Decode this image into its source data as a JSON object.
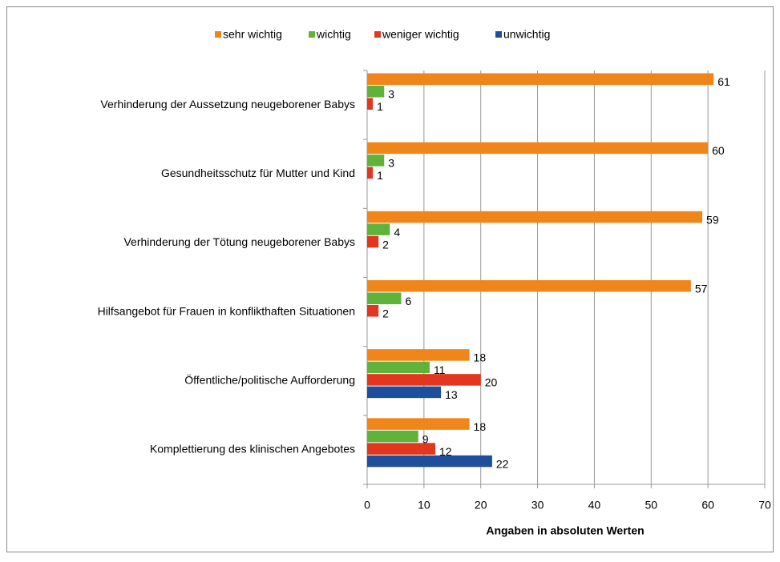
{
  "chart_data": {
    "type": "barh",
    "categories": [
      "Verhinderung der Aussetzung neugeborener Babys",
      "Gesundheitsschutz für Mutter und Kind",
      "Verhinderung der Tötung neugeborener Babys",
      "Hilfsangebot für Frauen in konflikthaften Situationen",
      "Öffentliche/politische Aufforderung",
      "Komplettierung des klinischen Angebotes"
    ],
    "series": [
      {
        "name": "sehr wichtig",
        "color": "#f0861a",
        "values": [
          61,
          60,
          59,
          57,
          18,
          18
        ]
      },
      {
        "name": "wichtig",
        "color": "#5fb33b",
        "values": [
          3,
          3,
          4,
          6,
          11,
          9
        ]
      },
      {
        "name": "weniger wichtig",
        "color": "#e2361f",
        "values": [
          1,
          1,
          2,
          2,
          20,
          12
        ]
      },
      {
        "name": "unwichtig",
        "color": "#1f4e9a",
        "values": [
          null,
          null,
          null,
          null,
          13,
          22
        ]
      }
    ],
    "xlabel": "Angaben in absoluten Werten",
    "xlim": [
      0,
      70
    ],
    "xticks": [
      0,
      10,
      20,
      30,
      40,
      50,
      60,
      70
    ],
    "grid": true,
    "legend": "top"
  }
}
